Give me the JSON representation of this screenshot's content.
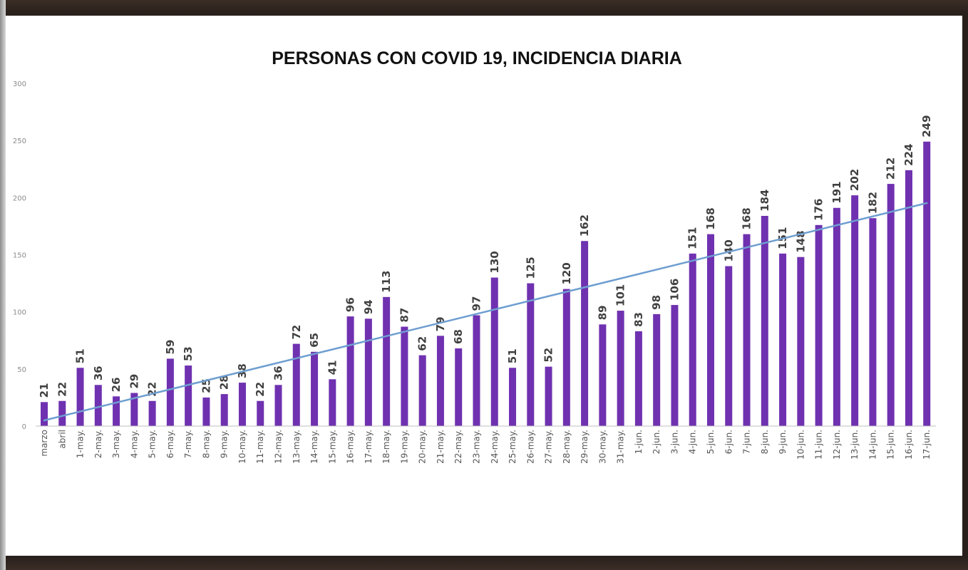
{
  "colors": {
    "bar": "#6f31b0",
    "trendline": "#6e9ed0",
    "axis": "#bfbfbf",
    "background": "#ffffff"
  },
  "chart_data": {
    "type": "bar",
    "title": "PERSONAS CON COVID 19, INCIDENCIA DIARIA",
    "xlabel": "",
    "ylabel": "",
    "ylim": [
      0,
      300
    ],
    "yticks": [
      0,
      50,
      100,
      150,
      200,
      250,
      300
    ],
    "grid": false,
    "legend": "none",
    "trendline": "linear",
    "categories": [
      "marzo",
      "abril",
      "1-may.",
      "2-may.",
      "3-may.",
      "4-may.",
      "5-may.",
      "6-may.",
      "7-may.",
      "8-may.",
      "9-may.",
      "10-may.",
      "11-may.",
      "12-may.",
      "13-may.",
      "14-may.",
      "15-may.",
      "16-may.",
      "17-may.",
      "18-may.",
      "19-may.",
      "20-may.",
      "21-may.",
      "22-may.",
      "23-may.",
      "24-may.",
      "25-may.",
      "26-may.",
      "27-may.",
      "28-may.",
      "29-may.",
      "30-may.",
      "31-may.",
      "1-jun.",
      "2-jun.",
      "3-jun.",
      "4-jun.",
      "5-jun.",
      "6-jun.",
      "7-jun.",
      "8-jun.",
      "9-jun.",
      "10-jun.",
      "11-jun.",
      "12-jun.",
      "13-jun.",
      "14-jun.",
      "15-jun.",
      "16-jun.",
      "17-jun."
    ],
    "values": [
      21,
      22,
      51,
      36,
      26,
      29,
      22,
      59,
      53,
      25,
      28,
      38,
      22,
      36,
      72,
      65,
      41,
      96,
      94,
      113,
      87,
      62,
      79,
      68,
      97,
      130,
      51,
      125,
      52,
      120,
      162,
      89,
      101,
      83,
      98,
      106,
      151,
      168,
      140,
      168,
      184,
      151,
      148,
      176,
      191,
      202,
      182,
      212,
      224,
      249
    ]
  }
}
